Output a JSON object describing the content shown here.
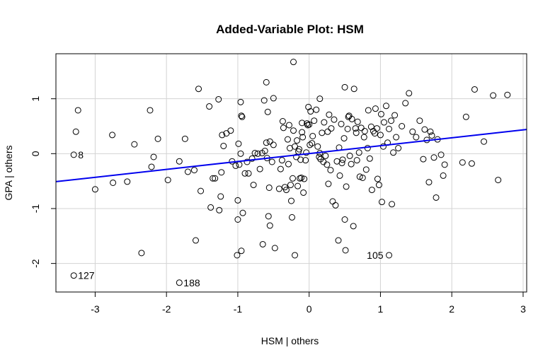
{
  "chart_data": {
    "type": "scatter",
    "title": "Added-Variable Plot: HSM",
    "xlabel": "HSM | others",
    "ylabel": "GPA | others",
    "xlim": [
      -3.55,
      3.05
    ],
    "ylim": [
      -2.52,
      1.82
    ],
    "x_ticks": [
      -3,
      -2,
      -1,
      0,
      1,
      2,
      3
    ],
    "y_ticks": [
      -2,
      -1,
      0,
      1
    ],
    "grid": true,
    "fit_line": {
      "x": [
        -3.55,
        3.05
      ],
      "y": [
        -0.51,
        0.44
      ],
      "color": "#0000ee"
    },
    "labeled_points": [
      {
        "label": "8",
        "x": -3.3,
        "y": -0.02
      },
      {
        "label": "127",
        "x": -3.3,
        "y": -2.22
      },
      {
        "label": "188",
        "x": -1.82,
        "y": -2.35
      },
      {
        "label": "105",
        "x": 1.12,
        "y": -1.85
      }
    ],
    "points": [
      [
        -3.3,
        -0.02
      ],
      [
        -3.3,
        -2.22
      ],
      [
        -1.82,
        -2.35
      ],
      [
        1.12,
        -1.85
      ],
      [
        -3.24,
        0.79
      ],
      [
        -3.27,
        0.4
      ],
      [
        -3.0,
        -0.65
      ],
      [
        -2.76,
        0.34
      ],
      [
        -2.75,
        -0.53
      ],
      [
        -2.55,
        -0.51
      ],
      [
        -2.45,
        0.17
      ],
      [
        -2.35,
        -1.81
      ],
      [
        -2.23,
        0.79
      ],
      [
        -2.21,
        -0.24
      ],
      [
        -2.18,
        -0.06
      ],
      [
        -2.12,
        0.27
      ],
      [
        -1.98,
        -0.48
      ],
      [
        -1.82,
        -0.14
      ],
      [
        -1.74,
        0.27
      ],
      [
        -1.7,
        -0.33
      ],
      [
        -1.61,
        -0.3
      ],
      [
        -1.59,
        -1.58
      ],
      [
        -1.55,
        1.18
      ],
      [
        -1.52,
        -0.68
      ],
      [
        -1.4,
        0.86
      ],
      [
        -1.38,
        -0.98
      ],
      [
        -1.35,
        -0.45
      ],
      [
        -1.32,
        -0.45
      ],
      [
        -1.27,
        0.99
      ],
      [
        -1.26,
        -1.03
      ],
      [
        -1.24,
        -0.78
      ],
      [
        -1.23,
        -0.34
      ],
      [
        -1.22,
        0.34
      ],
      [
        -1.2,
        0.14
      ],
      [
        -1.16,
        0.37
      ],
      [
        -1.1,
        0.42
      ],
      [
        -1.08,
        -0.14
      ],
      [
        -1.03,
        -0.22
      ],
      [
        -1.0,
        -0.85
      ],
      [
        -1.0,
        -1.2
      ],
      [
        -1.01,
        -1.85
      ],
      [
        -0.99,
        0.18
      ],
      [
        -0.98,
        -0.2
      ],
      [
        -0.96,
        0.0
      ],
      [
        -0.96,
        0.94
      ],
      [
        -0.95,
        0.69
      ],
      [
        -0.94,
        0.67
      ],
      [
        -0.95,
        -1.77
      ],
      [
        -0.93,
        -1.08
      ],
      [
        -0.9,
        -0.36
      ],
      [
        -0.87,
        -0.15
      ],
      [
        -0.85,
        -0.36
      ],
      [
        -0.8,
        -0.09
      ],
      [
        -0.78,
        -0.57
      ],
      [
        -0.76,
        0.01
      ],
      [
        -0.72,
        0.0
      ],
      [
        -0.69,
        -0.28
      ],
      [
        -0.66,
        0.01
      ],
      [
        -0.65,
        -1.65
      ],
      [
        -0.63,
        0.97
      ],
      [
        -0.62,
        0.05
      ],
      [
        -0.6,
        0.2
      ],
      [
        -0.6,
        1.3
      ],
      [
        -0.59,
        -0.08
      ],
      [
        -0.58,
        0.76
      ],
      [
        -0.57,
        -1.14
      ],
      [
        -0.56,
        -0.62
      ],
      [
        -0.55,
        -1.31
      ],
      [
        -0.55,
        0.22
      ],
      [
        -0.52,
        -0.15
      ],
      [
        -0.5,
        1.01
      ],
      [
        -0.5,
        0.16
      ],
      [
        -0.48,
        -1.72
      ],
      [
        -0.42,
        -0.64
      ],
      [
        -0.4,
        -0.28
      ],
      [
        -0.38,
        -0.12
      ],
      [
        -0.37,
        0.59
      ],
      [
        -0.36,
        0.47
      ],
      [
        -0.34,
        -0.61
      ],
      [
        -0.32,
        -0.66
      ],
      [
        -0.3,
        0.26
      ],
      [
        -0.29,
        -0.19
      ],
      [
        -0.28,
        0.52
      ],
      [
        -0.27,
        0.1
      ],
      [
        -0.26,
        -0.57
      ],
      [
        -0.25,
        -0.86
      ],
      [
        -0.24,
        -1.16
      ],
      [
        -0.23,
        -0.45
      ],
      [
        -0.22,
        0.42
      ],
      [
        -0.2,
        0.13
      ],
      [
        -0.2,
        -1.85
      ],
      [
        -0.18,
        -0.06
      ],
      [
        -0.17,
        0.24
      ],
      [
        -0.16,
        -0.59
      ],
      [
        -0.15,
        0.04
      ],
      [
        -0.14,
        0.08
      ],
      [
        -0.13,
        -0.45
      ],
      [
        -0.12,
        -0.11
      ],
      [
        -0.11,
        -0.44
      ],
      [
        -0.1,
        0.39
      ],
      [
        -0.1,
        0.56
      ],
      [
        -0.09,
        0.3
      ],
      [
        -0.08,
        -0.71
      ],
      [
        -0.07,
        -0.46
      ],
      [
        -0.05,
        -0.12
      ],
      [
        -0.04,
        0.02
      ],
      [
        -0.03,
        0.55
      ],
      [
        -0.02,
        0.52
      ],
      [
        -0.01,
        0.85
      ],
      [
        0.0,
        0.53
      ],
      [
        0.01,
        0.16
      ],
      [
        0.02,
        0.77
      ],
      [
        0.04,
        0.19
      ],
      [
        0.05,
        0.32
      ],
      [
        0.07,
        0.6
      ],
      [
        0.1,
        0.8
      ],
      [
        0.12,
        0.13
      ],
      [
        0.14,
        -0.06
      ],
      [
        0.15,
        1.0
      ],
      [
        0.15,
        0.01
      ],
      [
        0.16,
        -0.1
      ],
      [
        0.18,
        0.38
      ],
      [
        0.2,
        -0.15
      ],
      [
        0.21,
        0.57
      ],
      [
        0.23,
        -0.04
      ],
      [
        0.25,
        -0.2
      ],
      [
        0.26,
        0.4
      ],
      [
        0.27,
        -0.55
      ],
      [
        0.28,
        0.71
      ],
      [
        0.3,
        -0.3
      ],
      [
        0.31,
        0.46
      ],
      [
        0.33,
        -0.87
      ],
      [
        0.35,
        0.62
      ],
      [
        0.37,
        -0.94
      ],
      [
        0.39,
        -0.14
      ],
      [
        0.41,
        -1.58
      ],
      [
        0.42,
        0.11
      ],
      [
        0.43,
        -0.4
      ],
      [
        0.45,
        0.54
      ],
      [
        0.46,
        -0.17
      ],
      [
        0.47,
        -0.11
      ],
      [
        0.49,
        0.28
      ],
      [
        0.5,
        1.21
      ],
      [
        0.5,
        -1.2
      ],
      [
        0.51,
        -1.76
      ],
      [
        0.52,
        -0.6
      ],
      [
        0.54,
        0.45
      ],
      [
        0.55,
        0.67
      ],
      [
        0.56,
        0.69
      ],
      [
        0.57,
        -0.04
      ],
      [
        0.59,
        -0.19
      ],
      [
        0.6,
        0.63
      ],
      [
        0.62,
        -1.32
      ],
      [
        0.63,
        1.18
      ],
      [
        0.65,
        0.46
      ],
      [
        0.66,
        0.38
      ],
      [
        0.67,
        -0.12
      ],
      [
        0.68,
        0.58
      ],
      [
        0.7,
        0.02
      ],
      [
        0.71,
        -0.42
      ],
      [
        0.73,
        0.47
      ],
      [
        0.75,
        -0.44
      ],
      [
        0.77,
        0.3
      ],
      [
        0.78,
        0.41
      ],
      [
        0.8,
        -0.29
      ],
      [
        0.82,
        0.1
      ],
      [
        0.83,
        0.79
      ],
      [
        0.85,
        -0.09
      ],
      [
        0.87,
        0.49
      ],
      [
        0.88,
        -0.66
      ],
      [
        0.9,
        0.41
      ],
      [
        0.92,
        0.37
      ],
      [
        0.93,
        0.82
      ],
      [
        0.95,
        0.46
      ],
      [
        0.96,
        -0.46
      ],
      [
        0.98,
        -0.57
      ],
      [
        1.0,
        0.34
      ],
      [
        1.01,
        0.72
      ],
      [
        1.02,
        -0.88
      ],
      [
        1.04,
        0.13
      ],
      [
        1.05,
        0.57
      ],
      [
        1.08,
        0.87
      ],
      [
        1.1,
        0.2
      ],
      [
        1.12,
        0.45
      ],
      [
        1.15,
        0.6
      ],
      [
        1.16,
        -0.92
      ],
      [
        1.18,
        0.02
      ],
      [
        1.2,
        0.7
      ],
      [
        1.22,
        0.3
      ],
      [
        1.25,
        0.1
      ],
      [
        1.3,
        0.5
      ],
      [
        1.35,
        0.92
      ],
      [
        1.4,
        1.1
      ],
      [
        1.45,
        0.4
      ],
      [
        1.5,
        0.3
      ],
      [
        1.55,
        0.6
      ],
      [
        1.6,
        -0.1
      ],
      [
        1.62,
        0.44
      ],
      [
        1.65,
        0.25
      ],
      [
        1.68,
        -0.52
      ],
      [
        1.7,
        0.4
      ],
      [
        1.72,
        0.33
      ],
      [
        1.75,
        -0.07
      ],
      [
        1.78,
        -0.8
      ],
      [
        1.8,
        0.26
      ],
      [
        1.85,
        -0.02
      ],
      [
        1.88,
        -0.4
      ],
      [
        1.9,
        -0.2
      ],
      [
        2.15,
        -0.16
      ],
      [
        2.2,
        0.67
      ],
      [
        2.28,
        -0.18
      ],
      [
        2.32,
        1.17
      ],
      [
        2.45,
        0.22
      ],
      [
        2.58,
        1.06
      ],
      [
        2.65,
        -0.48
      ],
      [
        2.78,
        1.07
      ],
      [
        -0.22,
        1.67
      ]
    ]
  }
}
